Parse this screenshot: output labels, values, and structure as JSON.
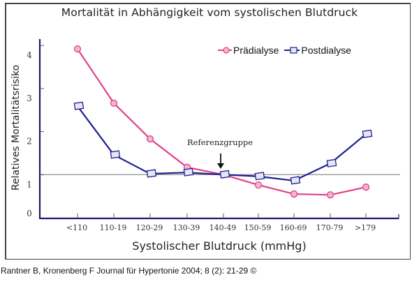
{
  "chart_data": {
    "type": "line",
    "title": "Mortalität in Abhängigkeit vom systolischen Blutdruck",
    "xlabel": "Systolischer Blutdruck (mmHg)",
    "ylabel": "Relatives Mortalitätsrisiko",
    "categories": [
      "<110",
      "110-19",
      "120-29",
      "130-39",
      "140-49",
      "150-59",
      "160-69",
      "170-79",
      ">179"
    ],
    "series": [
      {
        "name": "Prädialyse",
        "color": "#e0408a",
        "marker": "circle",
        "values": [
          3.92,
          2.66,
          1.83,
          1.17,
          1.0,
          0.76,
          0.55,
          0.53,
          0.71
        ]
      },
      {
        "name": "Postdialyse",
        "color": "#1f1f8f",
        "marker": "square",
        "values": [
          2.59,
          1.46,
          1.02,
          1.05,
          1.0,
          0.96,
          0.86,
          1.26,
          1.94
        ]
      }
    ],
    "yticks": [
      0,
      1,
      2,
      3,
      4
    ],
    "ylim": [
      0,
      4.15
    ],
    "reference_line": {
      "y": 1,
      "color": "#999999"
    },
    "annotations": [
      {
        "text": "Referenzgruppe",
        "category": "140-49",
        "arrow": "down"
      }
    ],
    "legend_position": "top-right",
    "grid": false
  },
  "source": "Rantner B, Kronenberg F Journal für Hypertonie 2004; 8 (2): 21-29 ©"
}
